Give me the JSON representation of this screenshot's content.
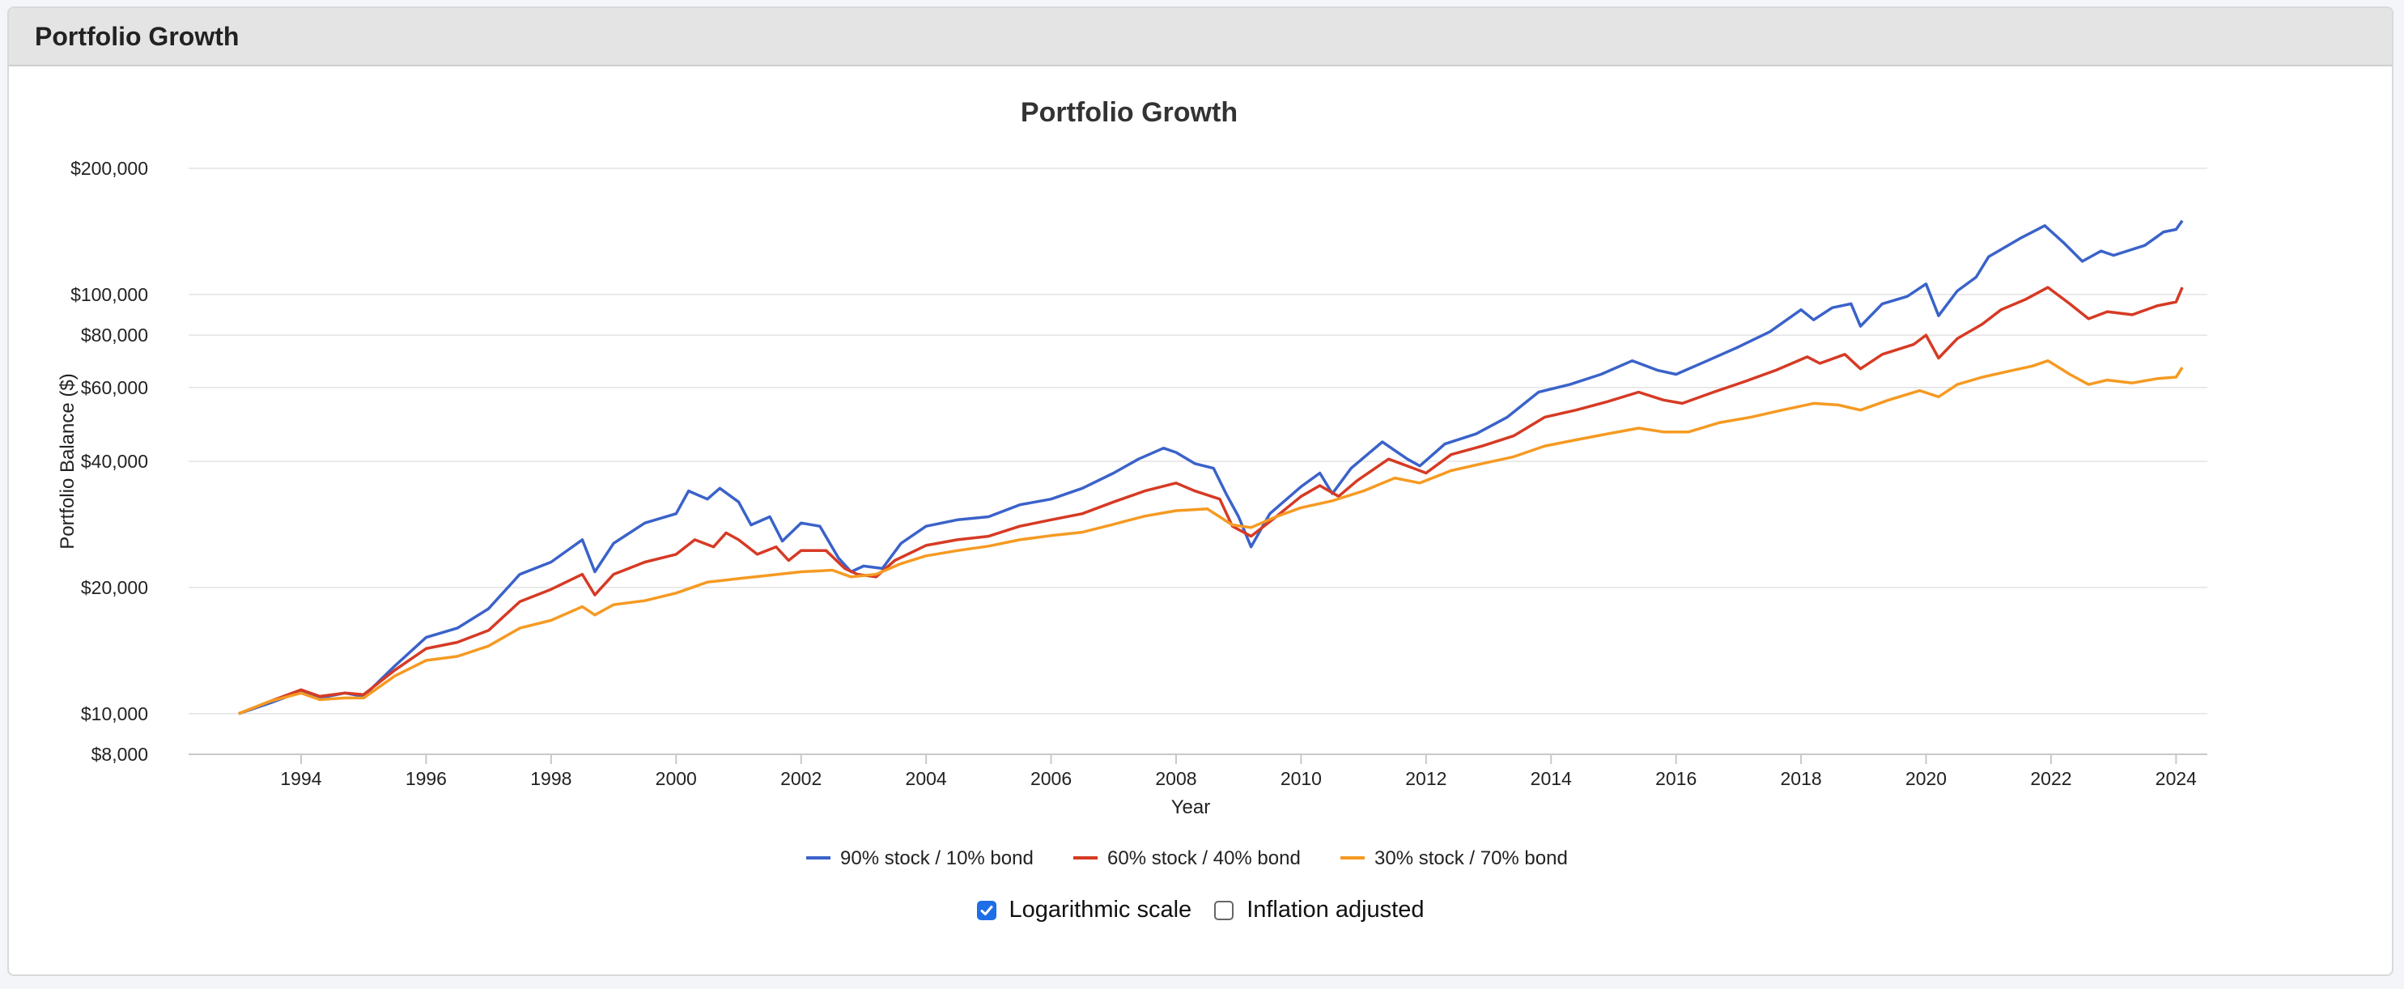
{
  "panel": {
    "title": "Portfolio Growth"
  },
  "controls": {
    "log_scale": {
      "label": "Logarithmic scale",
      "checked": true
    },
    "inflation": {
      "label": "Inflation adjusted",
      "checked": false
    }
  },
  "colors": {
    "s90": "#3a62c9",
    "s60": "#d63a24",
    "s30": "#f59a22",
    "grid": "#e3e3e3"
  },
  "chart_data": {
    "type": "line",
    "title": "Portfolio Growth",
    "xlabel": "Year",
    "ylabel": "Portfolio Balance ($)",
    "yscale": "log",
    "ylim": [
      8000,
      200000
    ],
    "xlim": [
      1992.2,
      2024.5
    ],
    "grid": true,
    "legend_position": "bottom",
    "y_ticks": [
      {
        "value": 200000,
        "label": "$200,000"
      },
      {
        "value": 100000,
        "label": "$100,000"
      },
      {
        "value": 80000,
        "label": "$80,000"
      },
      {
        "value": 60000,
        "label": "$60,000"
      },
      {
        "value": 40000,
        "label": "$40,000"
      },
      {
        "value": 20000,
        "label": "$20,000"
      },
      {
        "value": 10000,
        "label": "$10,000"
      },
      {
        "value": 8000,
        "label": "$8,000"
      }
    ],
    "x_ticks": [
      {
        "value": 1994,
        "label": "1994"
      },
      {
        "value": 1996,
        "label": "1996"
      },
      {
        "value": 1998,
        "label": "1998"
      },
      {
        "value": 2000,
        "label": "2000"
      },
      {
        "value": 2002,
        "label": "2002"
      },
      {
        "value": 2004,
        "label": "2004"
      },
      {
        "value": 2006,
        "label": "2006"
      },
      {
        "value": 2008,
        "label": "2008"
      },
      {
        "value": 2010,
        "label": "2010"
      },
      {
        "value": 2012,
        "label": "2012"
      },
      {
        "value": 2014,
        "label": "2014"
      },
      {
        "value": 2016,
        "label": "2016"
      },
      {
        "value": 2018,
        "label": "2018"
      },
      {
        "value": 2020,
        "label": "2020"
      },
      {
        "value": 2022,
        "label": "2022"
      },
      {
        "value": 2024,
        "label": "2024"
      }
    ],
    "series": [
      {
        "name": "90% stock / 10% bond",
        "color": "#3a62c9",
        "points": [
          [
            1993.0,
            10000
          ],
          [
            1993.5,
            10600
          ],
          [
            1994.0,
            11300
          ],
          [
            1994.3,
            10900
          ],
          [
            1994.7,
            11200
          ],
          [
            1995.0,
            11000
          ],
          [
            1995.5,
            13000
          ],
          [
            1996.0,
            15200
          ],
          [
            1996.5,
            16000
          ],
          [
            1997.0,
            17800
          ],
          [
            1997.5,
            21500
          ],
          [
            1998.0,
            23000
          ],
          [
            1998.5,
            26000
          ],
          [
            1998.7,
            21800
          ],
          [
            1999.0,
            25500
          ],
          [
            1999.5,
            28500
          ],
          [
            2000.0,
            30000
          ],
          [
            2000.2,
            34000
          ],
          [
            2000.5,
            32500
          ],
          [
            2000.7,
            34500
          ],
          [
            2001.0,
            32000
          ],
          [
            2001.2,
            28200
          ],
          [
            2001.5,
            29500
          ],
          [
            2001.7,
            25800
          ],
          [
            2002.0,
            28500
          ],
          [
            2002.3,
            28000
          ],
          [
            2002.6,
            23500
          ],
          [
            2002.8,
            21800
          ],
          [
            2003.0,
            22500
          ],
          [
            2003.3,
            22200
          ],
          [
            2003.6,
            25500
          ],
          [
            2004.0,
            28000
          ],
          [
            2004.5,
            29000
          ],
          [
            2005.0,
            29500
          ],
          [
            2005.5,
            31500
          ],
          [
            2006.0,
            32500
          ],
          [
            2006.5,
            34500
          ],
          [
            2007.0,
            37500
          ],
          [
            2007.4,
            40500
          ],
          [
            2007.8,
            43000
          ],
          [
            2008.0,
            42000
          ],
          [
            2008.3,
            39500
          ],
          [
            2008.6,
            38500
          ],
          [
            2008.8,
            33500
          ],
          [
            2009.0,
            29500
          ],
          [
            2009.2,
            25000
          ],
          [
            2009.5,
            30000
          ],
          [
            2010.0,
            34800
          ],
          [
            2010.3,
            37500
          ],
          [
            2010.5,
            33500
          ],
          [
            2010.8,
            38500
          ],
          [
            2011.3,
            44500
          ],
          [
            2011.7,
            40500
          ],
          [
            2011.9,
            39000
          ],
          [
            2012.3,
            44000
          ],
          [
            2012.8,
            46500
          ],
          [
            2013.3,
            51000
          ],
          [
            2013.8,
            58500
          ],
          [
            2014.3,
            61000
          ],
          [
            2014.8,
            64500
          ],
          [
            2015.3,
            69500
          ],
          [
            2015.7,
            66000
          ],
          [
            2016.0,
            64500
          ],
          [
            2016.5,
            69500
          ],
          [
            2017.0,
            75000
          ],
          [
            2017.5,
            81500
          ],
          [
            2018.0,
            92000
          ],
          [
            2018.2,
            87000
          ],
          [
            2018.5,
            93000
          ],
          [
            2018.8,
            95000
          ],
          [
            2018.95,
            84000
          ],
          [
            2019.3,
            95000
          ],
          [
            2019.7,
            99000
          ],
          [
            2020.0,
            106000
          ],
          [
            2020.2,
            89000
          ],
          [
            2020.5,
            102000
          ],
          [
            2020.8,
            110000
          ],
          [
            2021.0,
            123000
          ],
          [
            2021.5,
            136000
          ],
          [
            2021.9,
            146000
          ],
          [
            2022.2,
            133000
          ],
          [
            2022.5,
            120000
          ],
          [
            2022.8,
            127000
          ],
          [
            2023.0,
            124000
          ],
          [
            2023.5,
            131000
          ],
          [
            2023.8,
            141000
          ],
          [
            2024.0,
            143000
          ],
          [
            2024.1,
            150000
          ]
        ]
      },
      {
        "name": "60% stock / 40% bond",
        "color": "#d63a24",
        "points": [
          [
            1993.0,
            10000
          ],
          [
            1993.5,
            10700
          ],
          [
            1994.0,
            11400
          ],
          [
            1994.3,
            11000
          ],
          [
            1994.7,
            11200
          ],
          [
            1995.0,
            11100
          ],
          [
            1995.5,
            12700
          ],
          [
            1996.0,
            14300
          ],
          [
            1996.5,
            14800
          ],
          [
            1997.0,
            15800
          ],
          [
            1997.5,
            18500
          ],
          [
            1998.0,
            19800
          ],
          [
            1998.5,
            21500
          ],
          [
            1998.7,
            19200
          ],
          [
            1999.0,
            21500
          ],
          [
            1999.5,
            23000
          ],
          [
            2000.0,
            24000
          ],
          [
            2000.3,
            26000
          ],
          [
            2000.6,
            25000
          ],
          [
            2000.8,
            27000
          ],
          [
            2001.0,
            26000
          ],
          [
            2001.3,
            24000
          ],
          [
            2001.6,
            25000
          ],
          [
            2001.8,
            23200
          ],
          [
            2002.0,
            24500
          ],
          [
            2002.4,
            24500
          ],
          [
            2002.7,
            22200
          ],
          [
            2002.9,
            21500
          ],
          [
            2003.2,
            21200
          ],
          [
            2003.5,
            23200
          ],
          [
            2004.0,
            25200
          ],
          [
            2004.5,
            26000
          ],
          [
            2005.0,
            26500
          ],
          [
            2005.5,
            28000
          ],
          [
            2006.0,
            29000
          ],
          [
            2006.5,
            30000
          ],
          [
            2007.0,
            32000
          ],
          [
            2007.5,
            34000
          ],
          [
            2008.0,
            35500
          ],
          [
            2008.3,
            34000
          ],
          [
            2008.7,
            32500
          ],
          [
            2008.9,
            28000
          ],
          [
            2009.2,
            26500
          ],
          [
            2009.6,
            29500
          ],
          [
            2010.0,
            33000
          ],
          [
            2010.3,
            35000
          ],
          [
            2010.6,
            33000
          ],
          [
            2010.9,
            36000
          ],
          [
            2011.4,
            40500
          ],
          [
            2011.8,
            38500
          ],
          [
            2012.0,
            37500
          ],
          [
            2012.4,
            41500
          ],
          [
            2012.9,
            43500
          ],
          [
            2013.4,
            46000
          ],
          [
            2013.9,
            51000
          ],
          [
            2014.4,
            53000
          ],
          [
            2014.9,
            55500
          ],
          [
            2015.4,
            58500
          ],
          [
            2015.8,
            56000
          ],
          [
            2016.1,
            55000
          ],
          [
            2016.6,
            58500
          ],
          [
            2017.1,
            62000
          ],
          [
            2017.6,
            66000
          ],
          [
            2018.1,
            71000
          ],
          [
            2018.3,
            68500
          ],
          [
            2018.7,
            72000
          ],
          [
            2018.95,
            66500
          ],
          [
            2019.3,
            72000
          ],
          [
            2019.8,
            76000
          ],
          [
            2020.0,
            80000
          ],
          [
            2020.2,
            70500
          ],
          [
            2020.5,
            78500
          ],
          [
            2020.9,
            85000
          ],
          [
            2021.2,
            92000
          ],
          [
            2021.6,
            97500
          ],
          [
            2021.95,
            104000
          ],
          [
            2022.3,
            95000
          ],
          [
            2022.6,
            87500
          ],
          [
            2022.9,
            91000
          ],
          [
            2023.3,
            89500
          ],
          [
            2023.7,
            94000
          ],
          [
            2024.0,
            96000
          ],
          [
            2024.1,
            104000
          ]
        ]
      },
      {
        "name": "30% stock / 70% bond",
        "color": "#f59a22",
        "points": [
          [
            1993.0,
            10000
          ],
          [
            1993.5,
            10700
          ],
          [
            1994.0,
            11200
          ],
          [
            1994.3,
            10800
          ],
          [
            1994.7,
            10900
          ],
          [
            1995.0,
            10900
          ],
          [
            1995.5,
            12300
          ],
          [
            1996.0,
            13400
          ],
          [
            1996.5,
            13700
          ],
          [
            1997.0,
            14500
          ],
          [
            1997.5,
            16000
          ],
          [
            1998.0,
            16700
          ],
          [
            1998.5,
            18000
          ],
          [
            1998.7,
            17200
          ],
          [
            1999.0,
            18200
          ],
          [
            1999.5,
            18600
          ],
          [
            2000.0,
            19400
          ],
          [
            2000.5,
            20600
          ],
          [
            2001.0,
            21000
          ],
          [
            2001.5,
            21400
          ],
          [
            2002.0,
            21800
          ],
          [
            2002.5,
            22000
          ],
          [
            2002.8,
            21200
          ],
          [
            2003.2,
            21500
          ],
          [
            2003.6,
            22800
          ],
          [
            2004.0,
            23800
          ],
          [
            2004.5,
            24500
          ],
          [
            2005.0,
            25100
          ],
          [
            2005.5,
            26000
          ],
          [
            2006.0,
            26600
          ],
          [
            2006.5,
            27100
          ],
          [
            2007.0,
            28300
          ],
          [
            2007.5,
            29600
          ],
          [
            2008.0,
            30500
          ],
          [
            2008.5,
            30800
          ],
          [
            2008.9,
            28200
          ],
          [
            2009.2,
            27800
          ],
          [
            2009.6,
            29500
          ],
          [
            2010.0,
            31000
          ],
          [
            2010.5,
            32200
          ],
          [
            2011.0,
            34000
          ],
          [
            2011.5,
            36500
          ],
          [
            2011.9,
            35500
          ],
          [
            2012.4,
            38000
          ],
          [
            2012.9,
            39500
          ],
          [
            2013.4,
            41000
          ],
          [
            2013.9,
            43500
          ],
          [
            2014.4,
            45000
          ],
          [
            2014.9,
            46500
          ],
          [
            2015.4,
            48000
          ],
          [
            2015.8,
            47000
          ],
          [
            2016.2,
            47000
          ],
          [
            2016.7,
            49500
          ],
          [
            2017.2,
            51000
          ],
          [
            2017.7,
            53000
          ],
          [
            2018.2,
            55000
          ],
          [
            2018.6,
            54500
          ],
          [
            2018.95,
            53000
          ],
          [
            2019.4,
            56000
          ],
          [
            2019.9,
            59000
          ],
          [
            2020.2,
            57000
          ],
          [
            2020.5,
            61000
          ],
          [
            2020.9,
            63500
          ],
          [
            2021.3,
            65500
          ],
          [
            2021.7,
            67500
          ],
          [
            2021.95,
            69500
          ],
          [
            2022.3,
            64500
          ],
          [
            2022.6,
            61000
          ],
          [
            2022.9,
            62500
          ],
          [
            2023.3,
            61500
          ],
          [
            2023.7,
            63000
          ],
          [
            2024.0,
            63500
          ],
          [
            2024.1,
            67000
          ]
        ]
      }
    ]
  }
}
